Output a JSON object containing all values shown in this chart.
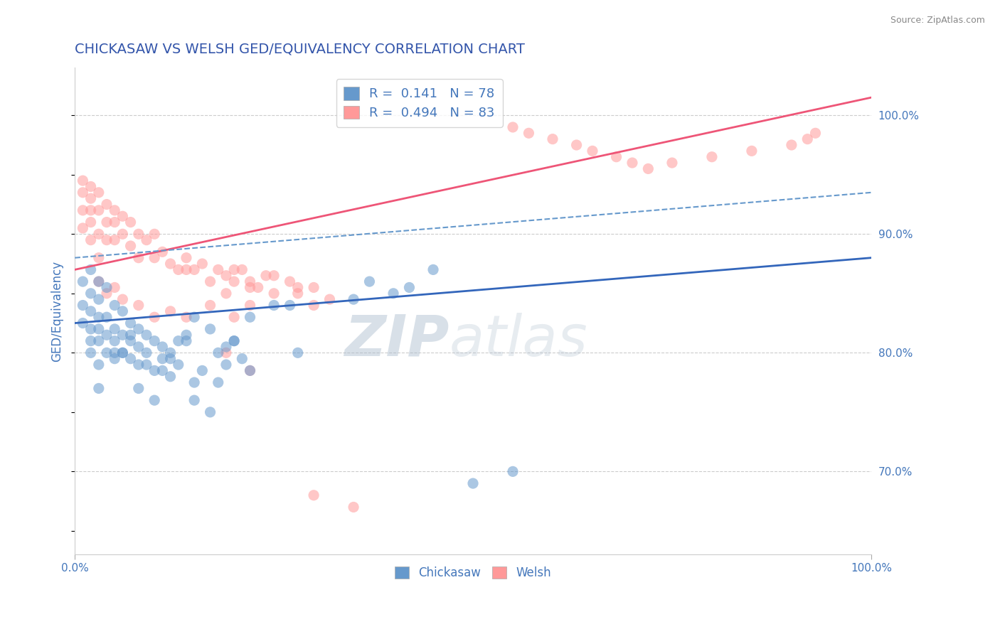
{
  "title": "CHICKASAW VS WELSH GED/EQUIVALENCY CORRELATION CHART",
  "source_text": "Source: ZipAtlas.com",
  "ylabel": "GED/Equivalency",
  "right_ytick_labels": [
    "70.0%",
    "80.0%",
    "90.0%",
    "100.0%"
  ],
  "right_ytick_values": [
    0.7,
    0.8,
    0.9,
    1.0
  ],
  "xlim": [
    0.0,
    1.0
  ],
  "ylim": [
    0.63,
    1.04
  ],
  "xtick_labels": [
    "0.0%",
    "100.0%"
  ],
  "xtick_values": [
    0.0,
    1.0
  ],
  "chickasaw_color": "#6699CC",
  "welsh_color": "#FF9999",
  "trend_blue_color": "#3366BB",
  "trend_pink_color": "#EE5577",
  "dashed_line_color": "#6699CC",
  "grid_color": "#CCCCCC",
  "title_color": "#3355AA",
  "axis_color": "#4477BB",
  "legend_R1": "0.141",
  "legend_N1": "78",
  "legend_R2": "0.494",
  "legend_N2": "83",
  "watermark": "ZIPatlas",
  "watermark_color": "#CCDDEE",
  "blue_trend_x0": 0.0,
  "blue_trend_y0": 0.825,
  "blue_trend_x1": 1.0,
  "blue_trend_y1": 0.88,
  "pink_trend_x0": 0.0,
  "pink_trend_y0": 0.87,
  "pink_trend_x1": 1.0,
  "pink_trend_y1": 1.015,
  "dash_trend_x0": 0.0,
  "dash_trend_y0": 0.88,
  "dash_trend_x1": 1.0,
  "dash_trend_y1": 0.935,
  "chickasaw_x": [
    0.01,
    0.01,
    0.01,
    0.02,
    0.02,
    0.02,
    0.02,
    0.02,
    0.02,
    0.03,
    0.03,
    0.03,
    0.03,
    0.03,
    0.03,
    0.04,
    0.04,
    0.04,
    0.04,
    0.05,
    0.05,
    0.05,
    0.05,
    0.06,
    0.06,
    0.06,
    0.07,
    0.07,
    0.07,
    0.08,
    0.08,
    0.08,
    0.09,
    0.09,
    0.1,
    0.1,
    0.11,
    0.11,
    0.12,
    0.12,
    0.13,
    0.14,
    0.15,
    0.15,
    0.16,
    0.17,
    0.18,
    0.18,
    0.19,
    0.2,
    0.21,
    0.22,
    0.25,
    0.28,
    0.03,
    0.05,
    0.07,
    0.09,
    0.11,
    0.13,
    0.15,
    0.17,
    0.06,
    0.08,
    0.1,
    0.12,
    0.14,
    0.19,
    0.2,
    0.22,
    0.27,
    0.35,
    0.37,
    0.4,
    0.42,
    0.45,
    0.5,
    0.55
  ],
  "chickasaw_y": [
    0.84,
    0.825,
    0.86,
    0.835,
    0.85,
    0.87,
    0.82,
    0.8,
    0.81,
    0.83,
    0.82,
    0.845,
    0.81,
    0.86,
    0.79,
    0.83,
    0.815,
    0.8,
    0.855,
    0.82,
    0.81,
    0.795,
    0.84,
    0.815,
    0.8,
    0.835,
    0.81,
    0.795,
    0.825,
    0.79,
    0.82,
    0.805,
    0.8,
    0.815,
    0.785,
    0.81,
    0.795,
    0.805,
    0.78,
    0.8,
    0.79,
    0.81,
    0.775,
    0.83,
    0.785,
    0.82,
    0.775,
    0.8,
    0.79,
    0.81,
    0.795,
    0.785,
    0.84,
    0.8,
    0.77,
    0.8,
    0.815,
    0.79,
    0.785,
    0.81,
    0.76,
    0.75,
    0.8,
    0.77,
    0.76,
    0.795,
    0.815,
    0.805,
    0.81,
    0.83,
    0.84,
    0.845,
    0.86,
    0.85,
    0.855,
    0.87,
    0.69,
    0.7
  ],
  "welsh_x": [
    0.01,
    0.01,
    0.01,
    0.01,
    0.02,
    0.02,
    0.02,
    0.02,
    0.02,
    0.03,
    0.03,
    0.03,
    0.03,
    0.04,
    0.04,
    0.04,
    0.05,
    0.05,
    0.05,
    0.06,
    0.06,
    0.07,
    0.07,
    0.08,
    0.08,
    0.09,
    0.1,
    0.1,
    0.11,
    0.12,
    0.13,
    0.14,
    0.15,
    0.16,
    0.17,
    0.18,
    0.19,
    0.2,
    0.21,
    0.22,
    0.23,
    0.25,
    0.27,
    0.28,
    0.3,
    0.32,
    0.03,
    0.04,
    0.05,
    0.06,
    0.08,
    0.1,
    0.12,
    0.14,
    0.17,
    0.2,
    0.22,
    0.14,
    0.19,
    0.22,
    0.24,
    0.19,
    0.22,
    0.55,
    0.57,
    0.6,
    0.63,
    0.65,
    0.68,
    0.7,
    0.72,
    0.75,
    0.8,
    0.85,
    0.9,
    0.92,
    0.93,
    0.2,
    0.25,
    0.28,
    0.3,
    0.3,
    0.35
  ],
  "welsh_y": [
    0.935,
    0.92,
    0.945,
    0.905,
    0.93,
    0.91,
    0.895,
    0.92,
    0.94,
    0.9,
    0.92,
    0.935,
    0.88,
    0.895,
    0.91,
    0.925,
    0.895,
    0.91,
    0.92,
    0.9,
    0.915,
    0.89,
    0.91,
    0.88,
    0.9,
    0.895,
    0.88,
    0.9,
    0.885,
    0.875,
    0.87,
    0.88,
    0.87,
    0.875,
    0.86,
    0.87,
    0.865,
    0.86,
    0.87,
    0.855,
    0.855,
    0.85,
    0.86,
    0.85,
    0.855,
    0.845,
    0.86,
    0.85,
    0.855,
    0.845,
    0.84,
    0.83,
    0.835,
    0.83,
    0.84,
    0.83,
    0.84,
    0.87,
    0.85,
    0.86,
    0.865,
    0.8,
    0.785,
    0.99,
    0.985,
    0.98,
    0.975,
    0.97,
    0.965,
    0.96,
    0.955,
    0.96,
    0.965,
    0.97,
    0.975,
    0.98,
    0.985,
    0.87,
    0.865,
    0.855,
    0.84,
    0.68,
    0.67
  ]
}
